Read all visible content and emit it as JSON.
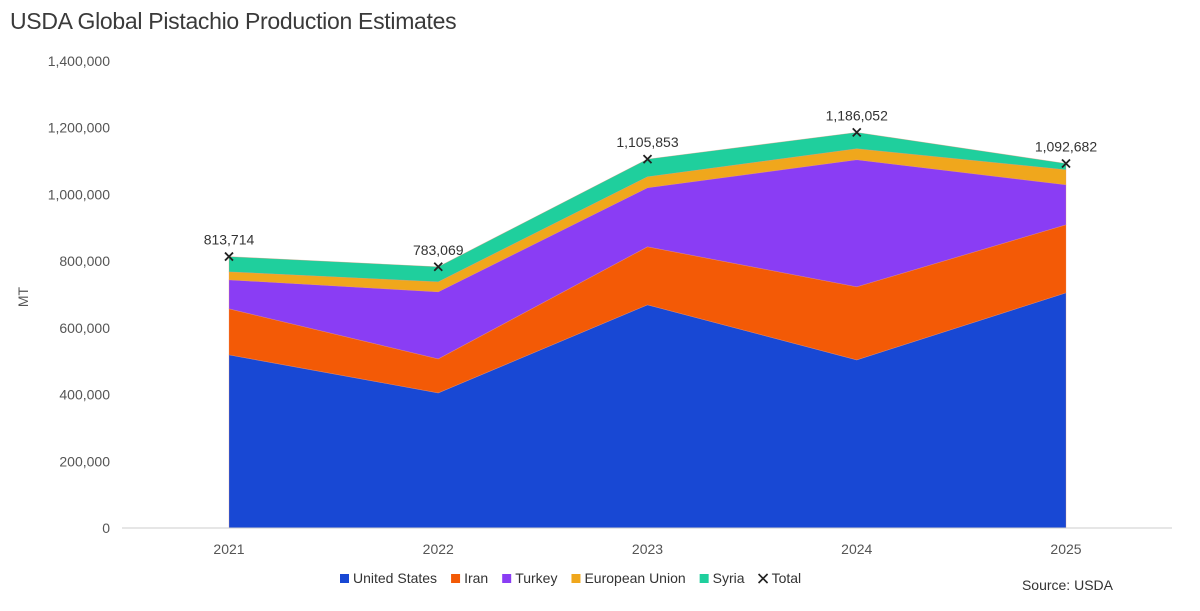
{
  "title": "USDA Global Pistachio Production Estimates",
  "source": "Source: USDA",
  "chart_data": {
    "type": "area",
    "stacked": true,
    "title": "USDA Global Pistachio Production Estimates",
    "xlabel": "",
    "ylabel": "MT",
    "categories": [
      "2021",
      "2022",
      "2023",
      "2024",
      "2025"
    ],
    "ylim": [
      0,
      1400000
    ],
    "yticks": [
      0,
      200000,
      400000,
      600000,
      800000,
      1000000,
      1200000,
      1400000
    ],
    "ytick_labels": [
      "0",
      "200,000",
      "400,000",
      "600,000",
      "800,000",
      "1,000,000",
      "1,200,000",
      "1,400,000"
    ],
    "grid": false,
    "legend_position": "bottom",
    "series": [
      {
        "name": "United States",
        "color": "#1848d4",
        "values": [
          519000,
          405000,
          669000,
          504000,
          705000
        ]
      },
      {
        "name": "Iran",
        "color": "#f35a06",
        "values": [
          138000,
          102000,
          174000,
          219000,
          204000
        ]
      },
      {
        "name": "Turkey",
        "color": "#8a3df4",
        "values": [
          87000,
          201000,
          177000,
          381000,
          120000
        ]
      },
      {
        "name": "European Union",
        "color": "#f0a71c",
        "values": [
          24000,
          30000,
          33000,
          33000,
          45000
        ]
      },
      {
        "name": "Syria",
        "color": "#1fcf9d",
        "values": [
          45714,
          45069,
          52853,
          49052,
          18682
        ]
      }
    ],
    "total": {
      "name": "Total",
      "marker": "x",
      "values": [
        813714,
        783069,
        1105853,
        1186052,
        1092682
      ],
      "labels": [
        "813,714",
        "783,069",
        "1,105,853",
        "1,186,052",
        "1,092,682"
      ]
    }
  }
}
